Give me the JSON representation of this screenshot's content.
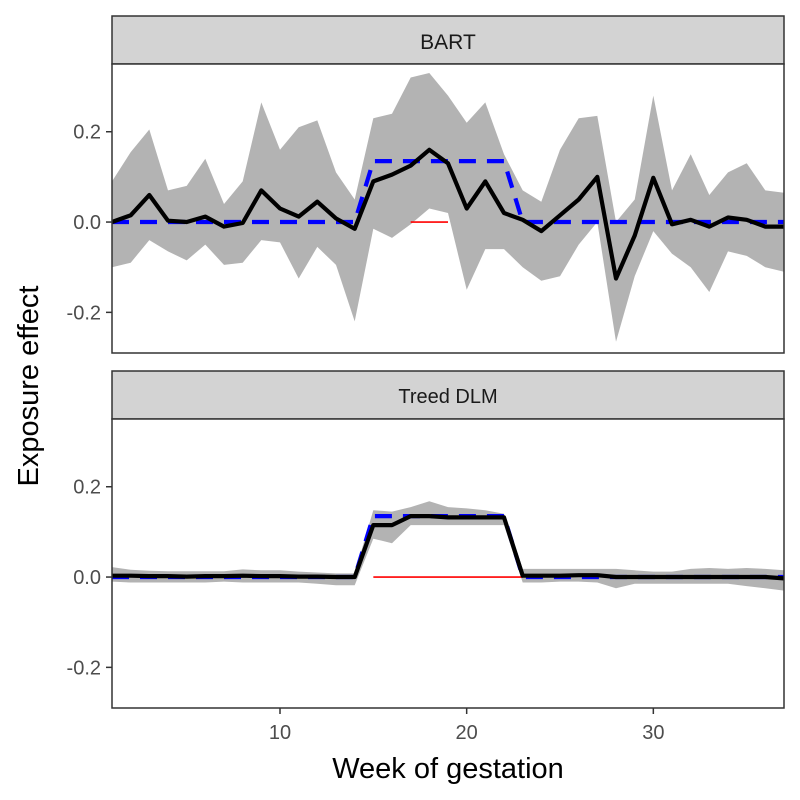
{
  "chart_data": {
    "type": "line",
    "xlabel": "Week of gestation",
    "ylabel": "Exposure effect",
    "xlim": [
      1,
      37
    ],
    "ylim": [
      -0.29,
      0.35
    ],
    "x_ticks": [
      10,
      20,
      30
    ],
    "y_ticks": [
      -0.2,
      0.0,
      0.2
    ],
    "y_tick_labels": [
      "-0.2",
      "0.0",
      "0.2"
    ],
    "grid": false,
    "colors": {
      "estimate": "#000000",
      "truth": "#0000ff",
      "band": "#b3b3b3",
      "critical": "#ff0000",
      "strip_fill": "#d3d3d3",
      "strip_border": "#333333"
    },
    "weeks": [
      1,
      2,
      3,
      4,
      5,
      6,
      7,
      8,
      9,
      10,
      11,
      12,
      13,
      14,
      15,
      16,
      17,
      18,
      19,
      20,
      21,
      22,
      23,
      24,
      25,
      26,
      27,
      28,
      29,
      30,
      31,
      32,
      33,
      34,
      35,
      36,
      37
    ],
    "panels": [
      {
        "strip_label": "BART",
        "estimate": [
          0.0,
          0.015,
          0.06,
          0.003,
          0.0,
          0.012,
          -0.01,
          -0.002,
          0.07,
          0.03,
          0.012,
          0.045,
          0.008,
          -0.015,
          0.09,
          0.105,
          0.125,
          0.16,
          0.13,
          0.03,
          0.09,
          0.02,
          0.005,
          -0.02,
          0.015,
          0.05,
          0.1,
          -0.125,
          -0.03,
          0.098,
          -0.005,
          0.005,
          -0.01,
          0.01,
          0.005,
          -0.01,
          -0.01
        ],
        "lower": [
          -0.1,
          -0.09,
          -0.04,
          -0.065,
          -0.085,
          -0.05,
          -0.095,
          -0.09,
          -0.04,
          -0.045,
          -0.125,
          -0.055,
          -0.095,
          -0.22,
          -0.015,
          -0.035,
          -0.005,
          0.03,
          0.02,
          -0.15,
          -0.06,
          -0.06,
          -0.1,
          -0.13,
          -0.12,
          -0.05,
          0.0,
          -0.265,
          -0.12,
          -0.02,
          -0.07,
          -0.1,
          -0.155,
          -0.065,
          -0.075,
          -0.1,
          -0.11
        ],
        "upper": [
          0.09,
          0.155,
          0.205,
          0.07,
          0.08,
          0.14,
          0.04,
          0.09,
          0.265,
          0.16,
          0.21,
          0.225,
          0.11,
          0.05,
          0.23,
          0.24,
          0.32,
          0.33,
          0.28,
          0.22,
          0.265,
          0.15,
          0.07,
          0.045,
          0.16,
          0.23,
          0.235,
          0.0,
          0.05,
          0.28,
          0.07,
          0.15,
          0.06,
          0.11,
          0.13,
          0.07,
          0.065
        ],
        "truth": [
          0,
          0,
          0,
          0,
          0,
          0,
          0,
          0,
          0,
          0,
          0,
          0,
          0,
          0,
          0.135,
          0.135,
          0.135,
          0.135,
          0.135,
          0.135,
          0.135,
          0.135,
          0,
          0,
          0,
          0,
          0,
          0,
          0,
          0,
          0,
          0,
          0,
          0,
          0,
          0,
          0
        ],
        "critical_window": [
          17,
          19
        ]
      },
      {
        "strip_label": "Treed DLM",
        "estimate": [
          0.003,
          0.003,
          0.002,
          0.002,
          0.001,
          0.002,
          0.002,
          0.003,
          0.002,
          0.002,
          0.001,
          0.001,
          0.0,
          0.0,
          0.115,
          0.115,
          0.135,
          0.135,
          0.132,
          0.132,
          0.132,
          0.132,
          0.003,
          0.003,
          0.003,
          0.004,
          0.004,
          0.0,
          0.0,
          0.0,
          0.0,
          0.0,
          0.0,
          0.0,
          0.0,
          0.0,
          -0.003
        ],
        "lower": [
          -0.01,
          -0.012,
          -0.012,
          -0.012,
          -0.012,
          -0.012,
          -0.01,
          -0.012,
          -0.012,
          -0.012,
          -0.012,
          -0.015,
          -0.018,
          -0.018,
          0.085,
          0.075,
          0.115,
          0.115,
          0.115,
          0.115,
          0.115,
          0.115,
          -0.012,
          -0.012,
          -0.01,
          -0.01,
          -0.012,
          -0.025,
          -0.015,
          -0.015,
          -0.015,
          -0.015,
          -0.015,
          -0.015,
          -0.02,
          -0.025,
          -0.03
        ],
        "upper": [
          0.022,
          0.016,
          0.014,
          0.013,
          0.013,
          0.013,
          0.013,
          0.017,
          0.015,
          0.015,
          0.012,
          0.01,
          0.008,
          0.008,
          0.148,
          0.145,
          0.155,
          0.168,
          0.155,
          0.152,
          0.148,
          0.14,
          0.018,
          0.018,
          0.018,
          0.018,
          0.018,
          0.018,
          0.015,
          0.012,
          0.012,
          0.018,
          0.02,
          0.018,
          0.02,
          0.018,
          0.015
        ],
        "truth": [
          0,
          0,
          0,
          0,
          0,
          0,
          0,
          0,
          0,
          0,
          0,
          0,
          0,
          0,
          0.135,
          0.135,
          0.135,
          0.135,
          0.135,
          0.135,
          0.135,
          0.135,
          0,
          0,
          0,
          0,
          0,
          0,
          0,
          0,
          0,
          0,
          0,
          0,
          0,
          0,
          0
        ],
        "critical_window": [
          15,
          23
        ]
      }
    ]
  }
}
